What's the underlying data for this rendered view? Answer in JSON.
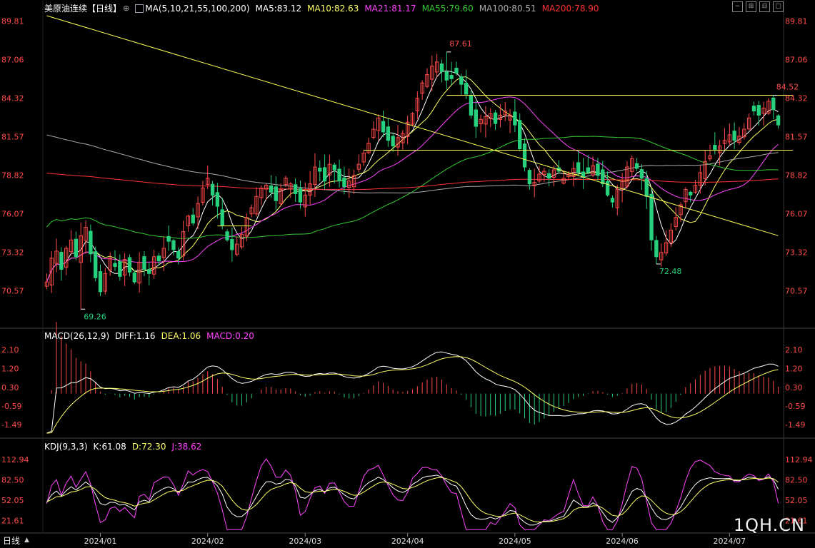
{
  "header_main": {
    "title": "美原油连续",
    "period": "【日线】",
    "ma_params": "MA(5,10,21,55,100,200)",
    "ma5": "MA5:83.12",
    "ma10": "MA10:82.63",
    "ma21": "MA21:81.17",
    "ma55": "MA55:79.60",
    "ma100": "MA100:80.51",
    "ma200": "MA200:78.90"
  },
  "header_macd": {
    "params": "MACD(26,12,9)",
    "diff": "DIFF:1.16",
    "dea": "DEA:1.06",
    "macd": "MACD:0.20"
  },
  "header_kdj": {
    "params": "KDJ(9,3,3)",
    "k": "K:61.08",
    "d": "D:72.30",
    "j": "J:38.62"
  },
  "bottom": {
    "period_button": "日线",
    "watermark": "1QH.CN"
  },
  "colors": {
    "up": "#ff4a4a",
    "down": "#26d07c",
    "ma5": "#ffffff",
    "ma10": "#ffff66",
    "ma21": "#ff44ff",
    "ma55": "#33cc33",
    "ma100": "#aaaaaa",
    "ma200": "#ff3333",
    "trend": "#ffff55"
  },
  "chart_data": [
    {
      "type": "candlestick",
      "title": "美原油连续",
      "x_tick_labels": [
        "2024/01",
        "2024/02",
        "2024/03",
        "2024/04",
        "2024/05",
        "2024/06",
        "2024/07"
      ],
      "y_tick_labels": [
        "89.81",
        "87.06",
        "84.32",
        "81.57",
        "78.82",
        "76.07",
        "73.32",
        "70.57"
      ],
      "ylim": [
        68.0,
        90.3
      ],
      "annotations": [
        {
          "text": "87.61",
          "value": 87.61,
          "date": "2024/04/05"
        },
        {
          "text": "84.52",
          "value": 84.52,
          "date": "2024/07/03"
        },
        {
          "text": "72.48",
          "value": 72.48,
          "date": "2024/06/04"
        },
        {
          "text": "69.26",
          "value": 69.26,
          "date": "2023/12/13"
        }
      ],
      "trend_lines": [
        {
          "from": [
            0,
            90.2
          ],
          "to": [
            150,
            74.5
          ]
        },
        {
          "from": [
            82,
            84.52
          ],
          "to": [
            153,
            84.52
          ]
        },
        {
          "from": [
            65,
            80.6
          ],
          "to": [
            153,
            80.6
          ]
        },
        {
          "from": [
            35,
            75.2
          ],
          "to": [
            42,
            75.2
          ]
        }
      ],
      "closes": [
        71.2,
        72.9,
        73.4,
        72.1,
        73.6,
        74.2,
        73.0,
        74.5,
        75.1,
        73.2,
        71.5,
        70.5,
        71.8,
        72.9,
        72.3,
        71.6,
        72.8,
        71.9,
        71.2,
        72.6,
        72.1,
        71.8,
        73.0,
        72.7,
        73.6,
        74.1,
        73.5,
        72.9,
        74.8,
        75.9,
        75.4,
        76.8,
        77.9,
        78.6,
        77.4,
        76.6,
        75.2,
        74.2,
        73.5,
        73.9,
        74.6,
        75.8,
        76.5,
        77.3,
        77.9,
        78.1,
        77.6,
        77.0,
        77.8,
        78.6,
        78.2,
        77.5,
        76.9,
        77.4,
        78.2,
        79.4,
        79.1,
        78.4,
        79.6,
        79.2,
        78.4,
        78.0,
        78.4,
        78.8,
        79.6,
        80.4,
        81.1,
        82.1,
        82.9,
        81.9,
        81.3,
        80.9,
        81.5,
        81.8,
        82.6,
        83.2,
        84.3,
        85.4,
        86.0,
        86.6,
        86.9,
        86.2,
        85.6,
        85.7,
        86.1,
        85.3,
        84.6,
        83.1,
        82.3,
        82.8,
        83.0,
        83.2,
        82.5,
        83.1,
        83.4,
        83.1,
        82.4,
        80.7,
        79.4,
        78.2,
        78.3,
        78.9,
        79.1,
        78.6,
        79.2,
        79.1,
        78.6,
        78.9,
        79.3,
        79.0,
        78.7,
        79.0,
        79.5,
        78.8,
        78.2,
        77.4,
        76.9,
        77.8,
        78.4,
        79.4,
        80.0,
        79.3,
        78.6,
        77.3,
        74.2,
        73.0,
        73.3,
        74.0,
        74.9,
        75.8,
        76.7,
        77.8,
        77.4,
        78.1,
        79.0,
        79.8,
        80.2,
        80.6,
        80.9,
        81.3,
        81.7,
        81.3,
        81.6,
        82.1,
        82.9,
        83.4,
        83.1,
        83.6,
        84.1,
        83.5,
        82.4
      ]
    },
    {
      "type": "macd",
      "y_tick_labels": [
        "2.10",
        "1.20",
        "0.30",
        "-0.59",
        "-1.49"
      ],
      "ylim": [
        -2.0,
        2.45
      ]
    },
    {
      "type": "kdj",
      "y_tick_labels": [
        "112.94",
        "82.50",
        "52.05",
        "21.61"
      ],
      "ylim": [
        5,
        128
      ]
    }
  ]
}
